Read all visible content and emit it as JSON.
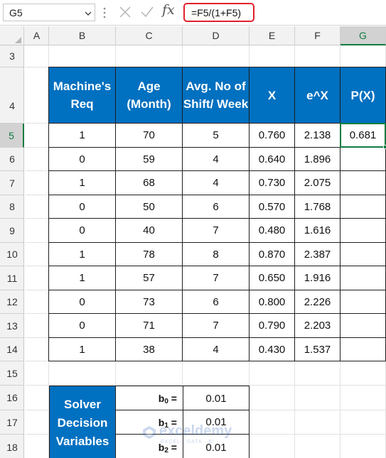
{
  "formula_bar": {
    "name_box": "G5",
    "fx_label": "fx",
    "formula": "=F5/(1+F5)"
  },
  "columns": [
    "A",
    "B",
    "C",
    "D",
    "E",
    "F",
    "G"
  ],
  "selected_column": "G",
  "rows": [
    "3",
    "4",
    "5",
    "6",
    "7",
    "8",
    "9",
    "10",
    "11",
    "12",
    "13",
    "14",
    "15",
    "16",
    "17",
    "18"
  ],
  "selected_row": "5",
  "table": {
    "headers": [
      "Machine's Req",
      "Age (Month)",
      "Avg. No of Shift/ Week",
      "X",
      "e^X",
      "P(X)"
    ],
    "rows": [
      [
        "1",
        "70",
        "5",
        "0.760",
        "2.138",
        "0.681"
      ],
      [
        "0",
        "59",
        "4",
        "0.640",
        "1.896",
        ""
      ],
      [
        "1",
        "68",
        "4",
        "0.730",
        "2.075",
        ""
      ],
      [
        "0",
        "50",
        "6",
        "0.570",
        "1.768",
        ""
      ],
      [
        "0",
        "40",
        "7",
        "0.480",
        "1.616",
        ""
      ],
      [
        "1",
        "78",
        "8",
        "0.870",
        "2.387",
        ""
      ],
      [
        "1",
        "57",
        "7",
        "0.650",
        "1.916",
        ""
      ],
      [
        "0",
        "73",
        "6",
        "0.800",
        "2.226",
        ""
      ],
      [
        "0",
        "71",
        "7",
        "0.790",
        "2.203",
        ""
      ],
      [
        "1",
        "38",
        "4",
        "0.430",
        "1.537",
        ""
      ]
    ]
  },
  "solver": {
    "label": "Solver Decision Variables",
    "params": [
      {
        "name": "b",
        "sub": "0",
        "eq": " =",
        "value": "0.01"
      },
      {
        "name": "b",
        "sub": "1",
        "eq": " =",
        "value": "0.01"
      },
      {
        "name": "b",
        "sub": "2",
        "eq": " =",
        "value": "0.01"
      }
    ]
  },
  "watermark": {
    "name": "exceldemy",
    "tagline": "EXCEL · DATA · BI"
  },
  "colors": {
    "header_blue": "#0070c0",
    "selection_green": "#107c41",
    "formula_highlight": "#e0202a"
  }
}
